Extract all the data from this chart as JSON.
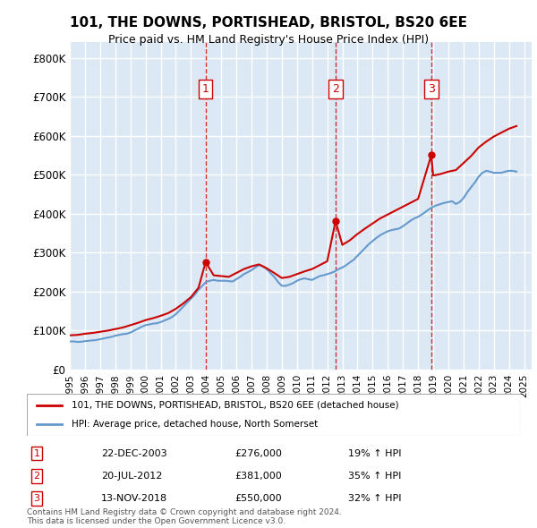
{
  "title": "101, THE DOWNS, PORTISHEAD, BRISTOL, BS20 6EE",
  "subtitle": "Price paid vs. HM Land Registry's House Price Index (HPI)",
  "ylabel_ticks": [
    "£0",
    "£100K",
    "£200K",
    "£300K",
    "£400K",
    "£500K",
    "£600K",
    "£700K",
    "£800K"
  ],
  "ytick_vals": [
    0,
    100000,
    200000,
    300000,
    400000,
    500000,
    600000,
    700000,
    800000
  ],
  "ylim": [
    0,
    840000
  ],
  "xlim_start": 1995.0,
  "xlim_end": 2025.5,
  "bg_color": "#dce9f5",
  "grid_color": "#ffffff",
  "transactions": [
    {
      "num": 1,
      "date": "22-DEC-2003",
      "year": 2003.97,
      "price": 276000,
      "pct": "19%",
      "dir": "↑"
    },
    {
      "num": 2,
      "date": "20-JUL-2012",
      "year": 2012.55,
      "price": 381000,
      "pct": "35%",
      "dir": "↑"
    },
    {
      "num": 3,
      "date": "13-NOV-2018",
      "year": 2018.87,
      "price": 550000,
      "pct": "32%",
      "dir": "↑"
    }
  ],
  "legend_line1": "101, THE DOWNS, PORTISHEAD, BRISTOL, BS20 6EE (detached house)",
  "legend_line2": "HPI: Average price, detached house, North Somerset",
  "footer": "Contains HM Land Registry data © Crown copyright and database right 2024.\nThis data is licensed under the Open Government Licence v3.0.",
  "hpi_years": [
    1995.0,
    1995.25,
    1995.5,
    1995.75,
    1996.0,
    1996.25,
    1996.5,
    1996.75,
    1997.0,
    1997.25,
    1997.5,
    1997.75,
    1998.0,
    1998.25,
    1998.5,
    1998.75,
    1999.0,
    1999.25,
    1999.5,
    1999.75,
    2000.0,
    2000.25,
    2000.5,
    2000.75,
    2001.0,
    2001.25,
    2001.5,
    2001.75,
    2002.0,
    2002.25,
    2002.5,
    2002.75,
    2003.0,
    2003.25,
    2003.5,
    2003.75,
    2004.0,
    2004.25,
    2004.5,
    2004.75,
    2005.0,
    2005.25,
    2005.5,
    2005.75,
    2006.0,
    2006.25,
    2006.5,
    2006.75,
    2007.0,
    2007.25,
    2007.5,
    2007.75,
    2008.0,
    2008.25,
    2008.5,
    2008.75,
    2009.0,
    2009.25,
    2009.5,
    2009.75,
    2010.0,
    2010.25,
    2010.5,
    2010.75,
    2011.0,
    2011.25,
    2011.5,
    2011.75,
    2012.0,
    2012.25,
    2012.5,
    2012.75,
    2013.0,
    2013.25,
    2013.5,
    2013.75,
    2014.0,
    2014.25,
    2014.5,
    2014.75,
    2015.0,
    2015.25,
    2015.5,
    2015.75,
    2016.0,
    2016.25,
    2016.5,
    2016.75,
    2017.0,
    2017.25,
    2017.5,
    2017.75,
    2018.0,
    2018.25,
    2018.5,
    2018.75,
    2019.0,
    2019.25,
    2019.5,
    2019.75,
    2020.0,
    2020.25,
    2020.5,
    2020.75,
    2021.0,
    2021.25,
    2021.5,
    2021.75,
    2022.0,
    2022.25,
    2022.5,
    2022.75,
    2023.0,
    2023.25,
    2023.5,
    2023.75,
    2024.0,
    2024.25,
    2024.5
  ],
  "hpi_values": [
    72000,
    72500,
    71000,
    71500,
    73000,
    74000,
    75000,
    76000,
    78000,
    80000,
    82000,
    84000,
    87000,
    89000,
    91000,
    92000,
    95000,
    100000,
    105000,
    110000,
    114000,
    116000,
    118000,
    119000,
    122000,
    126000,
    130000,
    135000,
    142000,
    152000,
    162000,
    172000,
    182000,
    192000,
    205000,
    215000,
    225000,
    228000,
    230000,
    228000,
    228000,
    228000,
    227000,
    226000,
    232000,
    238000,
    245000,
    250000,
    255000,
    262000,
    268000,
    265000,
    258000,
    248000,
    238000,
    225000,
    215000,
    215000,
    218000,
    222000,
    228000,
    232000,
    234000,
    232000,
    230000,
    235000,
    240000,
    242000,
    245000,
    248000,
    252000,
    258000,
    262000,
    268000,
    275000,
    282000,
    292000,
    302000,
    312000,
    322000,
    330000,
    338000,
    345000,
    350000,
    355000,
    358000,
    360000,
    362000,
    368000,
    375000,
    382000,
    388000,
    392000,
    398000,
    405000,
    412000,
    418000,
    422000,
    425000,
    428000,
    430000,
    432000,
    425000,
    430000,
    440000,
    455000,
    468000,
    480000,
    495000,
    505000,
    510000,
    508000,
    505000,
    505000,
    505000,
    508000,
    510000,
    510000,
    508000
  ],
  "property_years": [
    1995.0,
    1995.5,
    1996.0,
    1996.5,
    1997.0,
    1997.5,
    1998.0,
    1998.5,
    1999.0,
    1999.5,
    2000.0,
    2000.5,
    2001.0,
    2001.5,
    2002.0,
    2002.5,
    2003.0,
    2003.5,
    2003.97,
    2004.5,
    2005.0,
    2005.5,
    2006.0,
    2006.5,
    2007.0,
    2007.5,
    2008.0,
    2008.5,
    2009.0,
    2009.5,
    2010.0,
    2010.5,
    2011.0,
    2011.5,
    2012.0,
    2012.55,
    2013.0,
    2013.5,
    2014.0,
    2014.5,
    2015.0,
    2015.5,
    2016.0,
    2016.5,
    2017.0,
    2017.5,
    2018.0,
    2018.87,
    2019.0,
    2019.5,
    2020.0,
    2020.5,
    2021.0,
    2021.5,
    2022.0,
    2022.5,
    2023.0,
    2023.5,
    2024.0,
    2024.5
  ],
  "property_values": [
    88000,
    89000,
    92000,
    94000,
    97000,
    100000,
    104000,
    108000,
    114000,
    120000,
    127000,
    132000,
    138000,
    145000,
    156000,
    170000,
    186000,
    210000,
    276000,
    242000,
    240000,
    238000,
    248000,
    258000,
    265000,
    270000,
    260000,
    248000,
    235000,
    238000,
    245000,
    252000,
    258000,
    268000,
    278000,
    381000,
    320000,
    332000,
    348000,
    362000,
    375000,
    388000,
    398000,
    408000,
    418000,
    428000,
    438000,
    550000,
    498000,
    502000,
    508000,
    512000,
    530000,
    548000,
    570000,
    585000,
    598000,
    608000,
    618000,
    625000
  ]
}
